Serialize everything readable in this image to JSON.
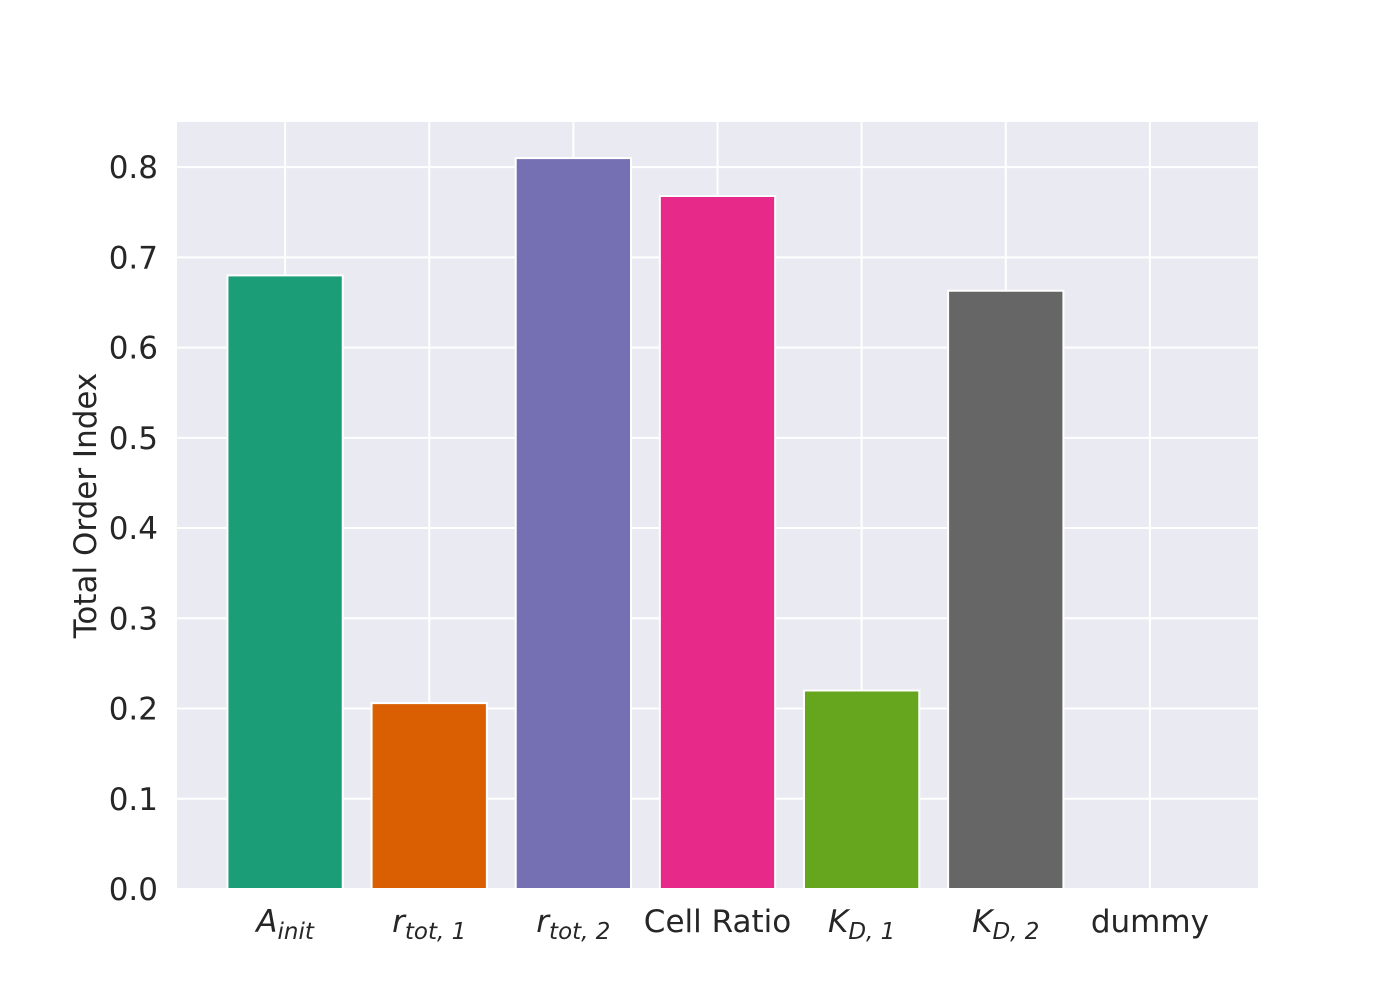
{
  "chart_data": {
    "type": "bar",
    "title": "",
    "xlabel": "",
    "ylabel": "Total Order Index",
    "ylim": [
      0,
      0.85
    ],
    "yticks": [
      "0.0",
      "0.1",
      "0.2",
      "0.3",
      "0.4",
      "0.5",
      "0.6",
      "0.7",
      "0.8"
    ],
    "grid": true,
    "categories": [
      {
        "label": "A_init",
        "main": "A",
        "sub": "init",
        "math": true
      },
      {
        "label": "r_tot,1",
        "main": "r",
        "sub": "tot, 1",
        "math": true
      },
      {
        "label": "r_tot,2",
        "main": "r",
        "sub": "tot, 2",
        "math": true
      },
      {
        "label": "Cell Ratio",
        "main": "Cell Ratio",
        "sub": "",
        "math": false
      },
      {
        "label": "K_D,1",
        "main": "K",
        "sub": "D, 1",
        "math": true
      },
      {
        "label": "K_D,2",
        "main": "K",
        "sub": "D, 2",
        "math": true
      },
      {
        "label": "dummy",
        "main": "dummy",
        "sub": "",
        "math": false
      }
    ],
    "values": [
      0.68,
      0.206,
      0.81,
      0.768,
      0.22,
      0.663,
      0.0
    ],
    "colors": [
      "#1b9e77",
      "#d95f02",
      "#7570b3",
      "#e7298a",
      "#66a61e",
      "#666666",
      "#e6ab02"
    ],
    "background_color": "#eaeaf2",
    "grid_color": "#ffffff"
  }
}
